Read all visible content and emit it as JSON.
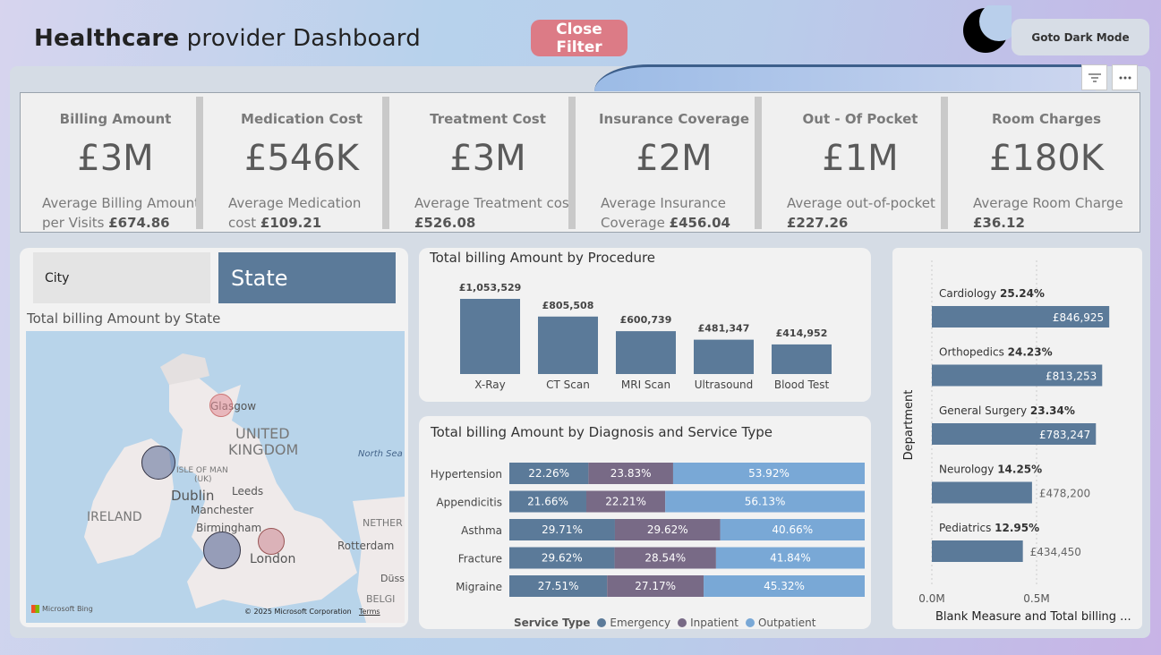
{
  "header": {
    "title_bold": "Healthcare",
    "title_rest": "provider Dashboard",
    "close_filter_label": "Close Filter",
    "dark_mode_label": "Goto Dark Mode"
  },
  "kpis": [
    {
      "label": "Billing Amount",
      "value": "£3M",
      "sub": "Average Billing Amount per Visits",
      "sub_value": "£674.86"
    },
    {
      "label": "Medication Cost",
      "value": "£546K",
      "sub": "Average Medication cost",
      "sub_value": "£109.21"
    },
    {
      "label": "Treatment Cost",
      "value": "£3M",
      "sub": "Average Treatment cost",
      "sub_value": "£526.08"
    },
    {
      "label": "Insurance Coverage",
      "value": "£2M",
      "sub": "Average Insurance Coverage",
      "sub_value": "£456.04"
    },
    {
      "label": "Out - Of Pocket",
      "value": "£1M",
      "sub": "Average out-of-pocket",
      "sub_value": "£227.26"
    },
    {
      "label": "Room Charges",
      "value": "£180K",
      "sub": "Average Room Charge",
      "sub_value": "£36.12"
    }
  ],
  "slicers": {
    "city": "City",
    "state": "State"
  },
  "map": {
    "title": "Total billing Amount by State",
    "labels": {
      "glasgow": "Glasgow",
      "uk1": "UNITED",
      "uk2": "KINGDOM",
      "isle": "ISLE OF MAN",
      "isle2": "(UK)",
      "dublin": "Dublin",
      "leeds": "Leeds",
      "manchester": "Manchester",
      "ireland": "IRELAND",
      "birmingham": "Birmingham",
      "london": "London",
      "north_sea": "North Sea",
      "rotterdam": "Rotterdam",
      "nether": "NETHER",
      "belgi": "BELGI",
      "duss": "Düss"
    },
    "bing": "Microsoft Bing",
    "copyright": "© 2025 Microsoft Corporation",
    "terms": "Terms"
  },
  "colors": {
    "bar": "#5b7a99",
    "emergency": "#5b7a99",
    "inpatient": "#786a86",
    "outpatient": "#79a8d6"
  },
  "chart_data": [
    {
      "type": "bar",
      "title": "Total billing Amount by Procedure",
      "categories": [
        "X-Ray",
        "CT Scan",
        "MRI Scan",
        "Ultrasound",
        "Blood Test"
      ],
      "values": [
        1053529,
        805508,
        600739,
        481347,
        414952
      ],
      "data_labels": [
        "£1,053,529",
        "£805,508",
        "£600,739",
        "£481,347",
        "£414,952"
      ]
    },
    {
      "type": "bar",
      "title": "Total billing Amount by Diagnosis and Service Type",
      "stacked": "100%",
      "orientation": "horizontal",
      "categories": [
        "Hypertension",
        "Appendicitis",
        "Asthma",
        "Fracture",
        "Migraine"
      ],
      "legend_title": "Service Type",
      "series": [
        {
          "name": "Emergency",
          "values": [
            22.26,
            21.66,
            29.71,
            29.62,
            27.51
          ]
        },
        {
          "name": "Inpatient",
          "values": [
            23.83,
            22.21,
            29.62,
            28.54,
            27.17
          ]
        },
        {
          "name": "Outpatient",
          "values": [
            53.92,
            56.13,
            40.66,
            41.84,
            45.32
          ]
        }
      ]
    },
    {
      "type": "bar",
      "orientation": "horizontal",
      "ylabel": "Department",
      "xlabel": "Blank Measure and Total billing ...",
      "x_ticks": [
        "0.0M",
        "0.5M"
      ],
      "categories": [
        "Cardiology",
        "Orthopedics",
        "General Surgery",
        "Neurology",
        "Pediatrics"
      ],
      "percents": [
        "25.24%",
        "24.23%",
        "23.34%",
        "14.25%",
        "12.95%"
      ],
      "values": [
        846925,
        813253,
        783247,
        478200,
        434450
      ],
      "data_labels": [
        "£846,925",
        "£813,253",
        "£783,247",
        "£478,200",
        "£434,450"
      ]
    }
  ]
}
